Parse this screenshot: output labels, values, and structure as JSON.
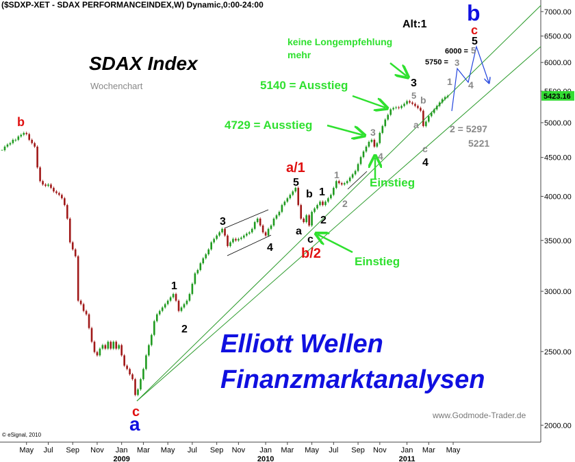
{
  "chart_data": {
    "type": "candlestick",
    "title": "($SDXP-XET - SDAX PERFORMANCEINDEX,W) Dynamic,0:00-24:00",
    "log_scale": true,
    "up_color": "#1f9a1f",
    "down_color": "#a01818",
    "ylim": [
      1900,
      7250
    ],
    "yticks": [
      {
        "value": 2000,
        "label": "2000.00"
      },
      {
        "value": 2500,
        "label": "2500.00"
      },
      {
        "value": 3000,
        "label": "3000.00"
      },
      {
        "value": 3500,
        "label": "3500.00"
      },
      {
        "value": 4000,
        "label": "4000.00"
      },
      {
        "value": 4500,
        "label": "4500.00"
      },
      {
        "value": 5000,
        "label": "5000.00"
      },
      {
        "value": 5500,
        "label": "5500.00"
      },
      {
        "value": 6000,
        "label": "6000.00"
      },
      {
        "value": 6500,
        "label": "6500.00"
      },
      {
        "value": 7000,
        "label": "7000.00"
      }
    ],
    "last_price": 5423.16,
    "last_price_color": "#33dd33",
    "x_years": [
      "2009",
      "2010",
      "2011"
    ],
    "categories": [
      null,
      null,
      null,
      null,
      null,
      null,
      null,
      null,
      null,
      "May",
      null,
      null,
      null,
      null,
      null,
      null,
      null,
      "Jul",
      null,
      null,
      null,
      null,
      null,
      null,
      null,
      null,
      "Sep",
      null,
      null,
      null,
      null,
      null,
      null,
      null,
      null,
      "Nov",
      null,
      null,
      null,
      null,
      null,
      null,
      null,
      null,
      "Jan",
      null,
      null,
      null,
      null,
      null,
      null,
      null,
      "Mar",
      null,
      null,
      null,
      null,
      null,
      null,
      null,
      null,
      "May",
      null,
      null,
      null,
      null,
      null,
      null,
      null,
      null,
      "Jul",
      null,
      null,
      null,
      null,
      null,
      null,
      null,
      null,
      "Sep",
      null,
      null,
      null,
      null,
      null,
      null,
      null,
      "Nov",
      null,
      null,
      null,
      null,
      null,
      null,
      null,
      null,
      null,
      "Jan",
      null,
      null,
      null,
      null,
      null,
      null,
      null,
      "Mar",
      null,
      null,
      null,
      null,
      null,
      null,
      null,
      null,
      "May",
      null,
      null,
      null,
      null,
      null,
      null,
      null,
      "Jul",
      null,
      null,
      null,
      null,
      null,
      null,
      null,
      null,
      "Sep",
      null,
      null,
      null,
      null,
      null,
      null,
      null,
      "Nov",
      null,
      null,
      null,
      null,
      null,
      null,
      null,
      null,
      null,
      "Jan",
      null,
      null,
      null,
      null,
      null,
      null,
      null,
      "Mar",
      null,
      null,
      null,
      null,
      null,
      null,
      null,
      null,
      "May"
    ],
    "values": [
      4600,
      4650,
      4680,
      4700,
      4747,
      4747,
      4795,
      4820,
      4847,
      4830,
      4747,
      4700,
      4650,
      4366,
      4189,
      4146,
      4129,
      4146,
      4104,
      4060,
      4040,
      4018,
      3977,
      3896,
      3739,
      3480,
      3406,
      3336,
      2916,
      2886,
      2827,
      2798,
      2684,
      2575,
      2496,
      2471,
      2522,
      2549,
      2522,
      2575,
      2522,
      2575,
      2522,
      2549,
      2471,
      2395,
      2371,
      2333,
      2299,
      2192,
      2229,
      2299,
      2371,
      2471,
      2549,
      2629,
      2741,
      2798,
      2827,
      2857,
      2886,
      2916,
      2946,
      2976,
      2916,
      2827,
      2857,
      2886,
      2916,
      2976,
      3069,
      3168,
      3200,
      3266,
      3316,
      3356,
      3406,
      3480,
      3516,
      3552,
      3587,
      3625,
      3552,
      3441,
      3480,
      3516,
      3500,
      3516,
      3530,
      3552,
      3573,
      3587,
      3625,
      3700,
      3739,
      3662,
      3587,
      3552,
      3625,
      3662,
      3739,
      3777,
      3816,
      3896,
      3936,
      3977,
      4018,
      4060,
      4104,
      3896,
      3739,
      3700,
      3777,
      3662,
      3816,
      3856,
      3896,
      3936,
      3896,
      3936,
      3977,
      4018,
      4104,
      4189,
      4163,
      4146,
      4163,
      4189,
      4233,
      4276,
      4320,
      4411,
      4505,
      4582,
      4650,
      4718,
      4747,
      4650,
      4700,
      4847,
      4949,
      5047,
      5120,
      5206,
      5228,
      5238,
      5228,
      5260,
      5293,
      5337,
      5315,
      5293,
      5260,
      5228,
      5184,
      4949,
      5016,
      5100,
      5152,
      5206,
      5260,
      5315,
      5369,
      5403,
      5423.16,
      null,
      null
    ],
    "annotations": [
      "Alt:1",
      "b",
      "c",
      "5",
      "keine Longempfehlung",
      "mehr",
      "6000 =",
      "5",
      "5750 =",
      "3",
      "1",
      "4",
      "SDAX Index",
      "Wochenchart",
      "5140 = Ausstieg",
      "3",
      "5",
      "b",
      "a",
      "c",
      "4",
      "2 = 5297",
      "5221",
      "4729 = Ausstieg",
      "3",
      "4",
      "Einstieg",
      "a/1",
      "5",
      "b",
      "1",
      "a",
      "2",
      "c",
      "b/2",
      "1",
      "2",
      "3",
      "4",
      "Einstieg",
      "b",
      "1",
      "2",
      "Elliott Wellen",
      "Finanzmarktanalysen",
      "c",
      "a",
      "www.Godmode-Trader.de",
      "© eSignal, 2010"
    ]
  }
}
